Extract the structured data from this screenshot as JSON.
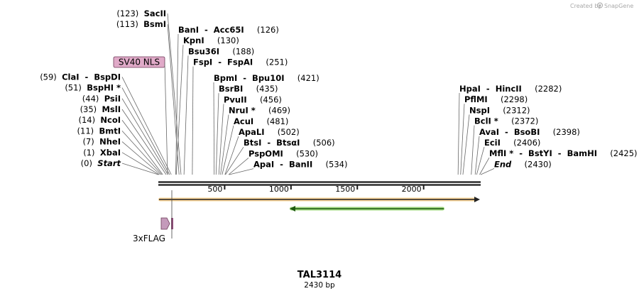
{
  "credit": "Created by",
  "brand": "SnapGene",
  "sequence": {
    "name": "TAL3114",
    "length_label": "2430 bp",
    "length_bp": 2430
  },
  "ruler": {
    "ticks": [
      500,
      1000,
      1500,
      2000
    ],
    "tick_labels": [
      "500",
      "1000",
      "1500",
      "2000"
    ]
  },
  "left_sites": [
    {
      "pos": 0,
      "pos_label": "(0)",
      "names": [
        "Start"
      ],
      "italic": true
    },
    {
      "pos": 1,
      "pos_label": "(1)",
      "names": [
        "XbaI"
      ]
    },
    {
      "pos": 7,
      "pos_label": "(7)",
      "names": [
        "NheI"
      ]
    },
    {
      "pos": 11,
      "pos_label": "(11)",
      "names": [
        "BmtI"
      ]
    },
    {
      "pos": 14,
      "pos_label": "(14)",
      "names": [
        "NcoI"
      ]
    },
    {
      "pos": 35,
      "pos_label": "(35)",
      "names": [
        "MslI"
      ]
    },
    {
      "pos": 44,
      "pos_label": "(44)",
      "names": [
        "PsiI"
      ]
    },
    {
      "pos": 51,
      "pos_label": "(51)",
      "names": [
        "BspHI *"
      ]
    },
    {
      "pos": 59,
      "pos_label": "(59)",
      "names": [
        "ClaI",
        "BspDI"
      ]
    },
    {
      "pos": 113,
      "pos_label": "(113)",
      "names": [
        "BsmI"
      ]
    },
    {
      "pos": 123,
      "pos_label": "(123)",
      "names": [
        "SacII"
      ]
    }
  ],
  "middle_top_sites": [
    {
      "pos": 126,
      "pos_label": "(126)",
      "names": [
        "BanI",
        "Acc65I"
      ]
    },
    {
      "pos": 130,
      "pos_label": "(130)",
      "names": [
        "KpnI"
      ]
    },
    {
      "pos": 188,
      "pos_label": "(188)",
      "names": [
        "Bsu36I"
      ]
    },
    {
      "pos": 251,
      "pos_label": "(251)",
      "names": [
        "FspI",
        "FspAI"
      ]
    }
  ],
  "middle_sites": [
    {
      "pos": 421,
      "pos_label": "(421)",
      "names": [
        "BpmI",
        "Bpu10I"
      ]
    },
    {
      "pos": 435,
      "pos_label": "(435)",
      "names": [
        "BsrBI"
      ]
    },
    {
      "pos": 456,
      "pos_label": "(456)",
      "names": [
        "PvuII"
      ]
    },
    {
      "pos": 469,
      "pos_label": "(469)",
      "names": [
        "NruI *"
      ]
    },
    {
      "pos": 481,
      "pos_label": "(481)",
      "names": [
        "AcuI"
      ]
    },
    {
      "pos": 502,
      "pos_label": "(502)",
      "names": [
        "ApaLI"
      ]
    },
    {
      "pos": 506,
      "pos_label": "(506)",
      "names": [
        "BtsI",
        "BtsαI"
      ]
    },
    {
      "pos": 530,
      "pos_label": "(530)",
      "names": [
        "PspOMI"
      ]
    },
    {
      "pos": 534,
      "pos_label": "(534)",
      "names": [
        "ApaI",
        "BanII"
      ]
    }
  ],
  "right_sites": [
    {
      "pos": 2282,
      "pos_label": "(2282)",
      "names": [
        "HpaI",
        "HincII"
      ]
    },
    {
      "pos": 2298,
      "pos_label": "(2298)",
      "names": [
        "PflMI"
      ]
    },
    {
      "pos": 2312,
      "pos_label": "(2312)",
      "names": [
        "NspI"
      ]
    },
    {
      "pos": 2372,
      "pos_label": "(2372)",
      "names": [
        "BclI *"
      ]
    },
    {
      "pos": 2398,
      "pos_label": "(2398)",
      "names": [
        "AvaI",
        "BsoBI"
      ]
    },
    {
      "pos": 2406,
      "pos_label": "(2406)",
      "names": [
        "EciI"
      ]
    },
    {
      "pos": 2425,
      "pos_label": "(2425)",
      "names": [
        "MflI *",
        "BstYI",
        "BamHI"
      ]
    },
    {
      "pos": 2430,
      "pos_label": "(2430)",
      "names": [
        "End"
      ],
      "italic": true
    }
  ],
  "features": [
    {
      "name": "SV40 NLS",
      "start": 75,
      "end": 96,
      "color": "#e0aac8",
      "labeled_box": true
    },
    {
      "name": "",
      "start": 1,
      "end": 2430,
      "color": "#f5b041",
      "direction": "forward"
    },
    {
      "name": "",
      "start": 1000,
      "end": 2190,
      "color": "#7ec850",
      "direction": "reverse"
    },
    {
      "name": "3xFLAG",
      "start": 14,
      "end": 80,
      "color": "#c088b0",
      "direction": "forward"
    }
  ],
  "colors": {
    "line": "#1a1a1a",
    "site_line": "#666666",
    "credit": "#a8a8a8"
  }
}
